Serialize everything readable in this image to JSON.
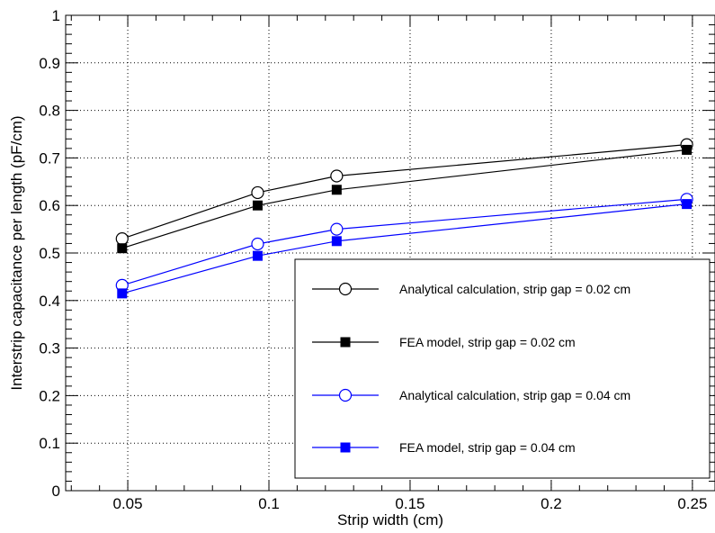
{
  "chart_data": {
    "type": "line",
    "xlabel": "Strip width (cm)",
    "ylabel": "Interstrip capacitance per length (pF/cm)",
    "xlim": [
      0.028,
      0.258
    ],
    "ylim": [
      0,
      1
    ],
    "xticks": [
      0.05,
      0.1,
      0.15,
      0.2,
      0.25
    ],
    "xtick_labels": [
      "0.05",
      "0.1",
      "0.15",
      "0.2",
      "0.25"
    ],
    "yticks": [
      0,
      0.1,
      0.2,
      0.3,
      0.4,
      0.5,
      0.6,
      0.7,
      0.8,
      0.9,
      1
    ],
    "ytick_labels": [
      "0",
      "0.1",
      "0.2",
      "0.3",
      "0.4",
      "0.5",
      "0.6",
      "0.7",
      "0.8",
      "0.9",
      "1"
    ],
    "grid": true,
    "legend_position": "bottom-right",
    "series": [
      {
        "name": "Analytical calculation, strip gap = 0.02 cm",
        "color": "#000000",
        "marker": "open-circle",
        "x": [
          0.048,
          0.096,
          0.124,
          0.248
        ],
        "y": [
          0.53,
          0.627,
          0.662,
          0.728
        ]
      },
      {
        "name": "FEA model, strip gap = 0.02 cm",
        "color": "#000000",
        "marker": "filled-square",
        "x": [
          0.048,
          0.096,
          0.124,
          0.248
        ],
        "y": [
          0.51,
          0.6,
          0.633,
          0.717
        ]
      },
      {
        "name": "Analytical calculation, strip gap = 0.04 cm",
        "color": "#0000ff",
        "marker": "open-circle",
        "x": [
          0.048,
          0.096,
          0.124,
          0.248
        ],
        "y": [
          0.432,
          0.519,
          0.55,
          0.613
        ]
      },
      {
        "name": "FEA model, strip gap = 0.04 cm",
        "color": "#0000ff",
        "marker": "filled-square",
        "x": [
          0.048,
          0.096,
          0.124,
          0.248
        ],
        "y": [
          0.415,
          0.494,
          0.525,
          0.603
        ]
      }
    ]
  }
}
